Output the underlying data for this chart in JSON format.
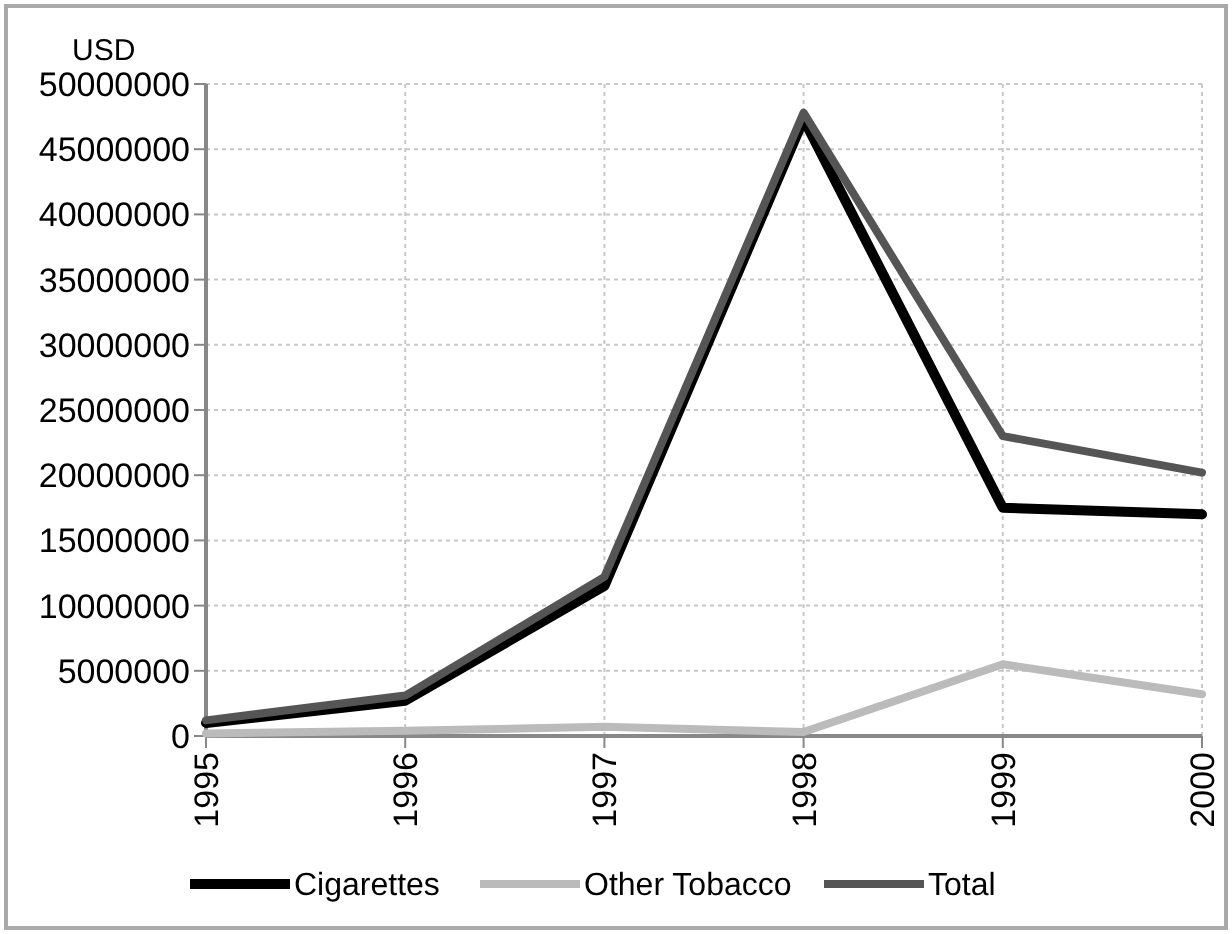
{
  "chart_data": {
    "type": "line",
    "ylabel": "USD",
    "categories": [
      "1995",
      "1996",
      "1997",
      "1998",
      "1999",
      "2000"
    ],
    "series": [
      {
        "name": "Cigarettes",
        "color": "#000000",
        "values": [
          1000000,
          2700000,
          11500000,
          47300000,
          17500000,
          17000000
        ]
      },
      {
        "name": "Other Tobacco",
        "color": "#bbbbbb",
        "values": [
          200000,
          400000,
          700000,
          300000,
          5500000,
          3200000
        ]
      },
      {
        "name": "Total",
        "color": "#555555",
        "values": [
          1200000,
          3100000,
          12200000,
          47800000,
          23000000,
          20200000
        ]
      }
    ],
    "ylim": [
      0,
      50000000
    ],
    "yticks": [
      0,
      5000000,
      10000000,
      15000000,
      20000000,
      25000000,
      30000000,
      35000000,
      40000000,
      45000000,
      50000000
    ],
    "grid": true,
    "legend": "bottom",
    "marker": "none",
    "line_style": "solid"
  }
}
